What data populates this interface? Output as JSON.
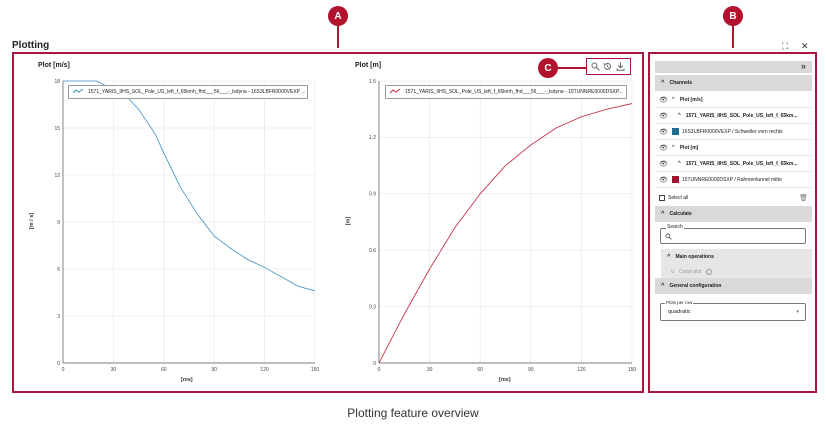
{
  "page_title": "Plotting",
  "caption": "Plotting feature overview",
  "callouts": {
    "a": "A",
    "b": "B",
    "c": "C"
  },
  "window": {
    "expand_icon": "⛶",
    "close_icon": "✕"
  },
  "plot1": {
    "title": "Plot [m/s]",
    "legend": "1571_YARIS_IIHS_SOL_Pole_US_left_f_65kmh_fhd___56___-_lsdyna - 16S3LBFR0000VEXP ...",
    "xlabel": "[ms]",
    "ylabel": "[m / s]",
    "xticks": [
      "0",
      "30",
      "60",
      "90",
      "120",
      "150"
    ],
    "yticks": [
      "0",
      "3",
      "6",
      "9",
      "12",
      "15",
      "18"
    ]
  },
  "plot2": {
    "title": "Plot [m]",
    "legend": "1571_YARIS_IIHS_SOL_Pole_US_left_f_65kmh_fhd___56___-_lsdyna - 15TUNNRE0000DSXP...",
    "xlabel": "[ms]",
    "ylabel": "[m]",
    "xticks": [
      "0",
      "30",
      "60",
      "90",
      "120",
      "150"
    ],
    "yticks": [
      "0",
      "0.3",
      "0.6",
      "0.9",
      "1.2",
      "1.5"
    ]
  },
  "toolbar": {
    "zoom_icon": "search-icon",
    "reset_icon": "history-icon",
    "download_icon": "download-icon"
  },
  "panel": {
    "collapse": "»",
    "channels_label": "Channels",
    "group1": "Plot [m/s]",
    "group1_sim": "1571_YARIS_IIHS_SOL_Pole_US_left_f_65km...",
    "group1_channel": "16S3LBFR0000VEXP / Schweller vorn rechts",
    "group2": "Plot [m]",
    "group2_sim": "1571_YARIS_IIHS_SOL_Pole_US_left_f_65km...",
    "group2_channel": "15TUNNRE0000DSXP / Rahmentunnel mitte",
    "select_all": "Select all",
    "calculate_label": "Calculate",
    "search_legend": "Search",
    "main_operations": "Main operations",
    "cross_plot": "Cross plot",
    "general_config": "General configuration",
    "plots_per_row_legend": "Plots per row",
    "plots_per_row_value": "quadratic"
  },
  "colors": {
    "accent": "#b3122e",
    "series1": "#3a8fc0",
    "series2": "#c0253c",
    "channel1_swatch": "#1f6e8c",
    "channel2_swatch": "#a0122c"
  },
  "chart_data": [
    {
      "type": "line",
      "title": "Plot [m/s]",
      "xlabel": "[ms]",
      "ylabel": "[m / s]",
      "xlim": [
        0,
        150
      ],
      "ylim": [
        0,
        18
      ],
      "grid": true,
      "legend": "top-left",
      "series": [
        {
          "name": "1571_YARIS_IIHS_SOL_Pole_US_left_f_65kmh_fhd___56___-_lsdyna - 16S3LBFR0000VEXP ...",
          "x": [
            0,
            20,
            38,
            45,
            55,
            60,
            70,
            80,
            90,
            100,
            110,
            120,
            130,
            140,
            150
          ],
          "y": [
            18,
            18,
            17.0,
            16.2,
            14.6,
            13.4,
            11.2,
            9.5,
            8.1,
            7.3,
            6.6,
            6.1,
            5.5,
            4.9,
            4.6
          ]
        }
      ]
    },
    {
      "type": "line",
      "title": "Plot [m]",
      "xlabel": "[ms]",
      "ylabel": "[m]",
      "xlim": [
        0,
        150
      ],
      "ylim": [
        0,
        1.5
      ],
      "grid": true,
      "legend": "top-left",
      "series": [
        {
          "name": "1571_YARIS_IIHS_SOL_Pole_US_left_f_65kmh_fhd___56___-_lsdyna - 15TUNNRE0000DSXP...",
          "x": [
            0,
            15,
            30,
            45,
            60,
            75,
            90,
            105,
            120,
            135,
            150
          ],
          "y": [
            0,
            0.26,
            0.5,
            0.72,
            0.9,
            1.05,
            1.16,
            1.25,
            1.31,
            1.35,
            1.38
          ]
        }
      ]
    }
  ]
}
